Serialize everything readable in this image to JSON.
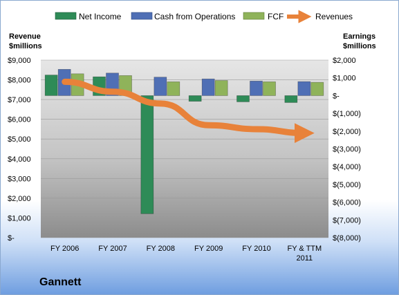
{
  "chart_data": {
    "type": "bar",
    "company": "Gannett",
    "categories": [
      "FY 2006",
      "FY 2007",
      "FY 2008",
      "FY 2009",
      "FY 2010",
      "FY & TTM 2011"
    ],
    "left_axis": {
      "label_lines": [
        "Revenue",
        "$millions"
      ],
      "ylim": [
        0,
        9000
      ],
      "ticks": [
        "$-",
        "$1,000",
        "$2,000",
        "$3,000",
        "$4,000",
        "$5,000",
        "$6,000",
        "$7,000",
        "$8,000",
        "$9,000"
      ]
    },
    "right_axis": {
      "label_lines": [
        "Earnings",
        "$millions"
      ],
      "ylim": [
        -8000,
        2000
      ],
      "ticks": [
        "$(8,000)",
        "$(7,000)",
        "$(6,000)",
        "$(5,000)",
        "$(4,000)",
        "$(3,000)",
        "$(2,000)",
        "$(1,000)",
        "$-",
        "$1,000",
        "$2,000"
      ]
    },
    "series": [
      {
        "name": "Net Income",
        "axis": "right",
        "kind": "bar",
        "color": "#2e8b57",
        "values": [
          1160,
          1060,
          -6650,
          -320,
          -350,
          -390
        ]
      },
      {
        "name": "Cash from Operations",
        "axis": "right",
        "kind": "bar",
        "color": "#4f6fb5",
        "values": [
          1480,
          1270,
          1040,
          940,
          820,
          790
        ]
      },
      {
        "name": "FCF",
        "axis": "right",
        "kind": "bar",
        "color": "#8fb35a",
        "values": [
          1230,
          1130,
          780,
          850,
          780,
          750
        ]
      },
      {
        "name": "Revenues",
        "axis": "left",
        "kind": "arrow",
        "color": "#e8823a",
        "values": [
          7900,
          7400,
          6800,
          5700,
          5500,
          5300
        ]
      }
    ],
    "grid": true,
    "legend": "top"
  }
}
